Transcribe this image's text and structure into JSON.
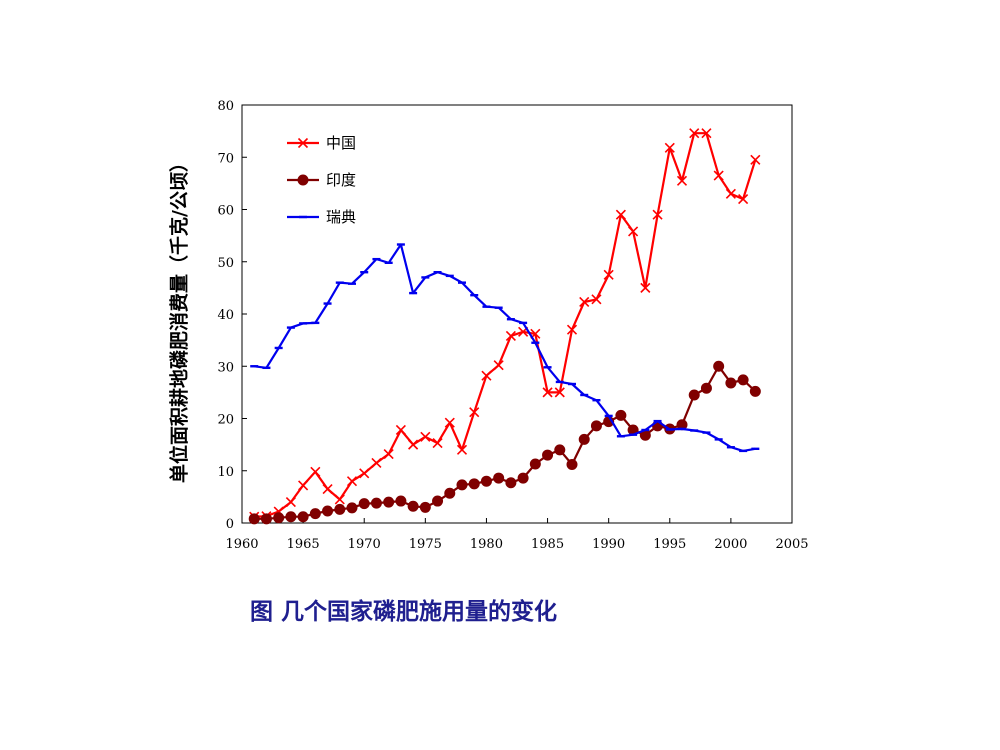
{
  "caption": "图 几个国家磷肥施用量的变化",
  "chart_data": {
    "type": "line",
    "title": "",
    "xlabel": "",
    "ylabel": "单位面积耕地磷肥消费量（千克/公顷）",
    "xlim": [
      1960,
      2005
    ],
    "ylim": [
      0,
      80
    ],
    "xticks": [
      1960,
      1965,
      1970,
      1975,
      1980,
      1985,
      1990,
      1995,
      2000,
      2005
    ],
    "yticks": [
      0,
      10,
      20,
      30,
      40,
      50,
      60,
      70,
      80
    ],
    "grid": false,
    "legend_position": "top-left",
    "series": [
      {
        "name": "中国",
        "color": "#ff0000",
        "marker": "x",
        "x": [
          1961,
          1962,
          1963,
          1964,
          1965,
          1966,
          1967,
          1968,
          1969,
          1970,
          1971,
          1972,
          1973,
          1974,
          1975,
          1976,
          1977,
          1978,
          1979,
          1980,
          1981,
          1982,
          1983,
          1984,
          1985,
          1986,
          1987,
          1988,
          1989,
          1990,
          1991,
          1992,
          1993,
          1994,
          1995,
          1996,
          1997,
          1998,
          1999,
          2000,
          2001,
          2002
        ],
        "y": [
          1.2,
          1.3,
          2.2,
          4,
          7.2,
          9.8,
          6.5,
          4.5,
          8,
          9.5,
          11.5,
          13.2,
          17.8,
          15,
          16.5,
          15.3,
          19.2,
          14,
          21.2,
          28.2,
          30.2,
          35.8,
          36.6,
          36.2,
          25,
          25,
          37,
          42.3,
          42.8,
          47.5,
          59,
          55.8,
          45,
          59,
          71.8,
          65.5,
          74.6,
          74.6,
          66.5,
          63,
          62,
          69.5
        ]
      },
      {
        "name": "印度",
        "color": "#800000",
        "marker": "circle",
        "x": [
          1961,
          1962,
          1963,
          1964,
          1965,
          1966,
          1967,
          1968,
          1969,
          1970,
          1971,
          1972,
          1973,
          1974,
          1975,
          1976,
          1977,
          1978,
          1979,
          1980,
          1981,
          1982,
          1983,
          1984,
          1985,
          1986,
          1987,
          1988,
          1989,
          1990,
          1991,
          1992,
          1993,
          1994,
          1995,
          1996,
          1997,
          1998,
          1999,
          2000,
          2001,
          2002
        ],
        "y": [
          0.8,
          0.8,
          1,
          1.2,
          1.2,
          1.8,
          2.3,
          2.6,
          2.9,
          3.7,
          3.8,
          4,
          4.2,
          3.2,
          3,
          4.2,
          5.7,
          7.3,
          7.5,
          8,
          8.6,
          7.7,
          8.6,
          11.3,
          13,
          14,
          11.2,
          16,
          18.6,
          19.4,
          20.6,
          17.8,
          16.8,
          18.6,
          18,
          18.8,
          24.5,
          25.8,
          30,
          26.8,
          27.4,
          25.2
        ]
      },
      {
        "name": "瑞典",
        "color": "#0000ee",
        "marker": "dash",
        "x": [
          1961,
          1962,
          1963,
          1964,
          1965,
          1966,
          1967,
          1968,
          1969,
          1970,
          1971,
          1972,
          1973,
          1974,
          1975,
          1976,
          1977,
          1978,
          1979,
          1980,
          1981,
          1982,
          1983,
          1984,
          1985,
          1986,
          1987,
          1988,
          1989,
          1990,
          1991,
          1992,
          1993,
          1994,
          1995,
          1996,
          1997,
          1998,
          1999,
          2000,
          2001,
          2002
        ],
        "y": [
          30,
          29.7,
          33.5,
          37.4,
          38.2,
          38.3,
          42,
          46,
          45.8,
          48,
          50.5,
          49.8,
          53.3,
          44,
          47,
          48,
          47.3,
          46,
          43.6,
          41.4,
          41.2,
          39,
          38.3,
          34.5,
          29.8,
          27,
          26.6,
          24.5,
          23.5,
          20.5,
          16.6,
          16.9,
          17.8,
          19.5,
          17.9,
          18,
          17.7,
          17.3,
          16,
          14.5,
          13.8,
          14.2
        ]
      }
    ]
  }
}
